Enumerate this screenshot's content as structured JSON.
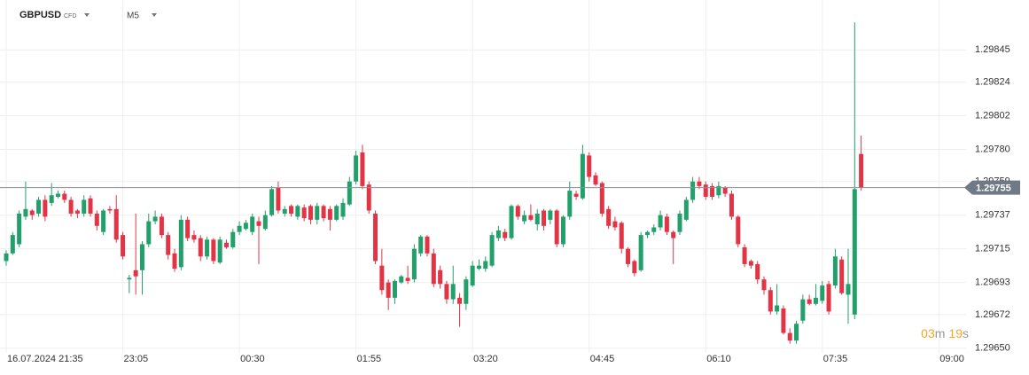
{
  "chart_data": {
    "type": "candlestick",
    "symbol": "GBPUSD",
    "instrument_type": "CFD",
    "timeframe": "M5",
    "current_price": 1.29755,
    "countdown": {
      "minutes": "03",
      "minutes_unit": "m",
      "seconds": "19",
      "seconds_unit": "s"
    },
    "up_color": "#22a06b",
    "down_color": "#e33446",
    "grid": true,
    "xlim": [
      -0.96,
      148.2
    ],
    "xticks": [
      {
        "value": 0,
        "label": "16.07.2024 21:35"
      },
      {
        "value": 18,
        "label": "23:05"
      },
      {
        "value": 36,
        "label": "00:30"
      },
      {
        "value": 54,
        "label": "01:55"
      },
      {
        "value": 72,
        "label": "03:20"
      },
      {
        "value": 90,
        "label": "04:45"
      },
      {
        "value": 108,
        "label": "06:10"
      },
      {
        "value": 126,
        "label": "07:35"
      },
      {
        "value": 144,
        "label": "09:00"
      }
    ],
    "ylim": [
      1.29647,
      1.29873
    ],
    "yticks": [
      1.29845,
      1.29824,
      1.29802,
      {
        "value": 1.2978,
        "label": "1.29780"
      },
      1.29759,
      1.29737,
      1.29715,
      1.29693,
      1.29672,
      {
        "value": 1.2965,
        "label": "1.29650"
      }
    ],
    "open": [
      1.29707,
      1.29712,
      1.29718,
      1.29736,
      1.2974,
      1.29738,
      1.29747,
      1.29745,
      1.29749,
      1.29751,
      1.29747,
      1.2974,
      1.29738,
      1.29748,
      1.29738,
      1.29726,
      1.29741,
      1.29741,
      1.29724,
      1.29695,
      1.29701,
      1.29701,
      1.29718,
      1.29733,
      1.29736,
      1.29724,
      1.29712,
      1.29703,
      1.29734,
      1.29724,
      1.29722,
      1.2971,
      1.29721,
      1.29706,
      1.29719,
      1.29716,
      1.29726,
      1.29728,
      1.29726,
      1.29733,
      1.29728,
      1.29737,
      1.29755,
      1.29738,
      1.29743,
      1.29736,
      1.29742,
      1.29743,
      1.29734,
      1.29743,
      1.29741,
      1.29734,
      1.29736,
      1.29744,
      1.29759,
      1.29778,
      1.29757,
      1.29738,
      1.29704,
      1.29693,
      1.29683,
      1.29693,
      1.29696,
      1.29695,
      1.29712,
      1.29723,
      1.29712,
      1.29701,
      1.29692,
      1.29682,
      1.29683,
      1.29679,
      1.29691,
      1.29702,
      1.29702,
      1.29704,
      1.29722,
      1.29726,
      1.29722,
      1.29743,
      1.29733,
      1.29737,
      1.29731,
      1.2974,
      1.29734,
      1.2974,
      1.29718,
      1.29736,
      1.29751,
      1.29748,
      1.29776,
      1.29763,
      1.29758,
      1.29741,
      1.29733,
      1.29732,
      1.29715,
      1.29707,
      1.29701,
      1.29724,
      1.29726,
      1.29729,
      1.29736,
      1.29726,
      1.29726,
      1.29734,
      1.29747,
      1.29759,
      1.29757,
      1.29756,
      1.2975,
      1.29755,
      1.29751,
      1.29736,
      1.29716,
      1.29707,
      1.29705,
      1.29695,
      1.29688,
      1.29674,
      1.29676,
      1.2966,
      1.29655,
      1.29668,
      1.29682,
      1.29679,
      1.29681,
      1.29692,
      1.29691,
      1.29708,
      1.29685,
      1.29672,
      1.29777
    ],
    "high": [
      1.29714,
      1.29726,
      1.2974,
      1.29759,
      1.29741,
      1.29749,
      1.2975,
      1.29758,
      1.29753,
      1.29753,
      1.29749,
      1.29741,
      1.2975,
      1.2975,
      1.2974,
      1.29741,
      1.29743,
      1.2975,
      1.29726,
      1.29698,
      1.29738,
      1.2972,
      1.29738,
      1.2974,
      1.29738,
      1.29726,
      1.29715,
      1.29737,
      1.29736,
      1.29727,
      1.29724,
      1.29723,
      1.29722,
      1.29723,
      1.29721,
      1.29728,
      1.29733,
      1.29734,
      1.29738,
      1.29736,
      1.2974,
      1.29756,
      1.29759,
      1.29743,
      1.29744,
      1.29744,
      1.29744,
      1.29744,
      1.29745,
      1.29744,
      1.29743,
      1.29744,
      1.29748,
      1.29762,
      1.29779,
      1.29783,
      1.29759,
      1.2974,
      1.29715,
      1.29695,
      1.29695,
      1.29698,
      1.29704,
      1.29718,
      1.29724,
      1.29724,
      1.29715,
      1.29704,
      1.29694,
      1.29704,
      1.29686,
      1.29697,
      1.29707,
      1.29708,
      1.2971,
      1.29726,
      1.2973,
      1.29728,
      1.29744,
      1.29744,
      1.2974,
      1.29744,
      1.29741,
      1.29741,
      1.29741,
      1.29741,
      1.29737,
      1.29759,
      1.29753,
      1.29783,
      1.29778,
      1.29765,
      1.29759,
      1.29743,
      1.29736,
      1.29733,
      1.29716,
      1.29708,
      1.29726,
      1.29727,
      1.29731,
      1.2974,
      1.29738,
      1.29727,
      1.2974,
      1.29749,
      1.29762,
      1.29762,
      1.29759,
      1.29758,
      1.29759,
      1.29756,
      1.29753,
      1.29737,
      1.29718,
      1.29708,
      1.29707,
      1.29697,
      1.2969,
      1.29692,
      1.29678,
      1.29663,
      1.29668,
      1.29685,
      1.29685,
      1.29692,
      1.29694,
      1.29694,
      1.29715,
      1.2971,
      1.29715,
      1.29863,
      1.29789
    ],
    "low": [
      1.29704,
      1.29711,
      1.29716,
      1.29734,
      1.29734,
      1.29736,
      1.29733,
      1.29743,
      1.29748,
      1.29745,
      1.29736,
      1.29735,
      1.29736,
      1.29736,
      1.29727,
      1.29724,
      1.29738,
      1.29719,
      1.29708,
      1.29686,
      1.29685,
      1.29685,
      1.29716,
      1.29731,
      1.29722,
      1.29708,
      1.297,
      1.29701,
      1.2972,
      1.29719,
      1.29707,
      1.29708,
      1.29705,
      1.29705,
      1.29715,
      1.29715,
      1.29724,
      1.29727,
      1.29724,
      1.29705,
      1.29727,
      1.29736,
      1.29738,
      1.29736,
      1.29736,
      1.29734,
      1.29733,
      1.29731,
      1.29731,
      1.29733,
      1.29727,
      1.29733,
      1.29734,
      1.29743,
      1.29757,
      1.29754,
      1.29738,
      1.29705,
      1.29685,
      1.29675,
      1.29679,
      1.29692,
      1.29692,
      1.29693,
      1.2971,
      1.2971,
      1.2969,
      1.29689,
      1.29679,
      1.29679,
      1.29664,
      1.29675,
      1.2969,
      1.29701,
      1.297,
      1.29703,
      1.2972,
      1.2972,
      1.29721,
      1.29734,
      1.29731,
      1.29733,
      1.29727,
      1.29727,
      1.29731,
      1.29716,
      1.29716,
      1.29734,
      1.29747,
      1.29747,
      1.29759,
      1.29756,
      1.29736,
      1.29728,
      1.29727,
      1.29712,
      1.29703,
      1.29697,
      1.297,
      1.29722,
      1.29724,
      1.29727,
      1.29724,
      1.29705,
      1.29724,
      1.29733,
      1.29745,
      1.29754,
      1.29747,
      1.29747,
      1.29748,
      1.29749,
      1.29734,
      1.29716,
      1.29703,
      1.29702,
      1.29692,
      1.29685,
      1.29672,
      1.29672,
      1.29659,
      1.29653,
      1.29653,
      1.29666,
      1.29678,
      1.29678,
      1.29679,
      1.29672,
      1.29689,
      1.29685,
      1.29666,
      1.29669,
      1.29753
    ],
    "close": [
      1.29712,
      1.29724,
      1.29738,
      1.29741,
      1.29737,
      1.29747,
      1.29736,
      1.2975,
      1.29751,
      1.29747,
      1.29738,
      1.29738,
      1.29747,
      1.29738,
      1.2973,
      1.2974,
      1.2974,
      1.29721,
      1.2971,
      1.29696,
      1.29697,
      1.29718,
      1.29733,
      1.29736,
      1.29724,
      1.29711,
      1.29702,
      1.29734,
      1.29722,
      1.29721,
      1.2971,
      1.29721,
      1.29707,
      1.29721,
      1.29716,
      1.29726,
      1.2973,
      1.29732,
      1.29736,
      1.2973,
      1.29737,
      1.29754,
      1.2974,
      1.29741,
      1.29738,
      1.29743,
      1.29735,
      1.29734,
      1.29743,
      1.29735,
      1.29734,
      1.29743,
      1.29745,
      1.29759,
      1.29776,
      1.29756,
      1.2974,
      1.29707,
      1.29688,
      1.29683,
      1.29694,
      1.29697,
      1.29694,
      1.29715,
      1.29723,
      1.29712,
      1.29692,
      1.29692,
      1.29682,
      1.29692,
      1.29679,
      1.29695,
      1.29704,
      1.29704,
      1.29707,
      1.29724,
      1.29727,
      1.29722,
      1.29743,
      1.29736,
      1.29737,
      1.29734,
      1.29738,
      1.2973,
      1.2974,
      1.29718,
      1.29736,
      1.29753,
      1.29749,
      1.29777,
      1.29762,
      1.29757,
      1.29738,
      1.2973,
      1.29729,
      1.29715,
      1.29705,
      1.29699,
      1.29724,
      1.29726,
      1.29729,
      1.29737,
      1.29726,
      1.29722,
      1.29738,
      1.29747,
      1.29759,
      1.29756,
      1.29749,
      1.29749,
      1.29756,
      1.29751,
      1.29736,
      1.29718,
      1.29705,
      1.29704,
      1.29695,
      1.29688,
      1.29674,
      1.29678,
      1.2966,
      1.29655,
      1.29666,
      1.29682,
      1.29679,
      1.29683,
      1.29691,
      1.29674,
      1.2971,
      1.29686,
      1.29692,
      1.29754,
      1.29755
    ]
  }
}
